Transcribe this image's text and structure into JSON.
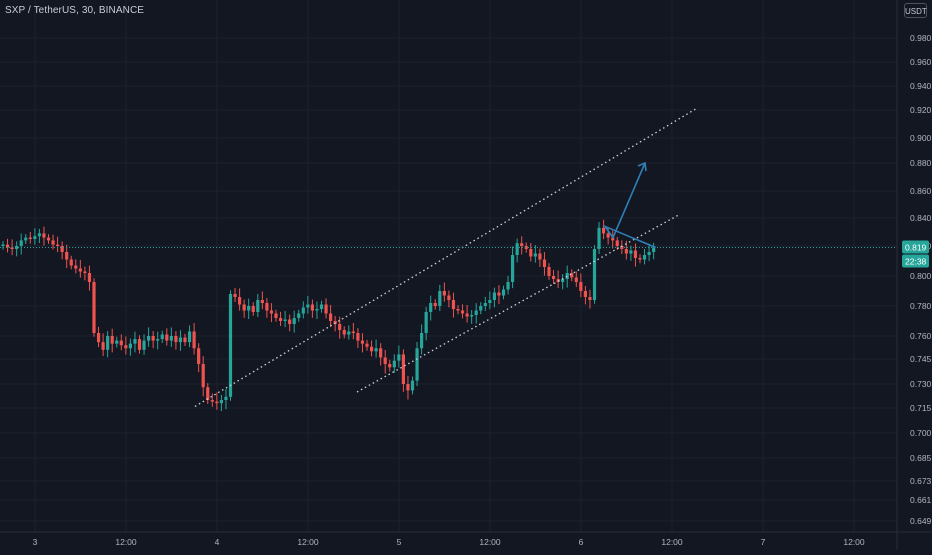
{
  "header": {
    "title": "SXP / TetherUS, 30, BINANCE",
    "currency": "USDT"
  },
  "colors": {
    "background": "#131722",
    "grid": "#1e222d",
    "up": "#26a69a",
    "down": "#ef5350",
    "channel": "#d1d4dc",
    "projection": "#2f7fb8",
    "label_bg": "#26a69a"
  },
  "chart_data": {
    "type": "candlestick",
    "title": "SXP / TetherUS, 30, BINANCE",
    "ylabel": "USDT",
    "y_ticks": [
      "0.980",
      "0.960",
      "0.940",
      "0.920",
      "0.900",
      "0.880",
      "0.860",
      "0.840",
      "0.820",
      "0.800",
      "0.780",
      "0.760",
      "0.745",
      "0.730",
      "0.715",
      "0.700",
      "0.685",
      "0.673",
      "0.661",
      "0.649"
    ],
    "x_ticks": [
      "3",
      "12:00",
      "4",
      "12:00",
      "5",
      "12:00",
      "6",
      "12:00",
      "7",
      "12:00"
    ],
    "last_price": "0.819",
    "countdown": "22:38",
    "candle_closes": [
      0.821,
      0.819,
      0.818,
      0.82,
      0.824,
      0.826,
      0.825,
      0.827,
      0.829,
      0.826,
      0.824,
      0.821,
      0.82,
      0.816,
      0.811,
      0.807,
      0.805,
      0.803,
      0.802,
      0.796,
      0.762,
      0.756,
      0.751,
      0.76,
      0.755,
      0.757,
      0.754,
      0.752,
      0.755,
      0.758,
      0.751,
      0.757,
      0.76,
      0.757,
      0.758,
      0.761,
      0.757,
      0.76,
      0.756,
      0.759,
      0.756,
      0.763,
      0.752,
      0.742,
      0.728,
      0.72,
      0.719,
      0.718,
      0.72,
      0.722,
      0.788,
      0.786,
      0.781,
      0.777,
      0.78,
      0.776,
      0.784,
      0.782,
      0.777,
      0.775,
      0.772,
      0.77,
      0.771,
      0.768,
      0.772,
      0.775,
      0.779,
      0.781,
      0.777,
      0.778,
      0.781,
      0.775,
      0.77,
      0.768,
      0.764,
      0.761,
      0.763,
      0.762,
      0.757,
      0.755,
      0.753,
      0.75,
      0.752,
      0.746,
      0.742,
      0.74,
      0.744,
      0.748,
      0.73,
      0.726,
      0.732,
      0.752,
      0.762,
      0.776,
      0.782,
      0.78,
      0.79,
      0.787,
      0.784,
      0.778,
      0.777,
      0.775,
      0.773,
      0.774,
      0.777,
      0.78,
      0.782,
      0.784,
      0.789,
      0.787,
      0.791,
      0.796,
      0.814,
      0.822,
      0.82,
      0.818,
      0.813,
      0.815,
      0.811,
      0.806,
      0.8,
      0.798,
      0.796,
      0.798,
      0.802,
      0.799,
      0.796,
      0.79,
      0.786,
      0.784,
      0.818,
      0.833,
      0.829,
      0.826,
      0.824,
      0.82,
      0.818,
      0.815,
      0.817,
      0.812,
      0.811,
      0.814,
      0.816,
      0.819
    ],
    "channel": {
      "upper": {
        "from": [
          "4 (bar 50)",
          0.716
        ],
        "to": [
          "6 12:00",
          0.921
        ]
      },
      "lower": {
        "from": [
          "5 (bar 88)",
          0.725
        ],
        "to": [
          "6 12:00",
          0.842
        ]
      }
    },
    "projection_path": [
      0.819,
      0.834,
      0.826,
      0.88
    ],
    "grid": true
  }
}
